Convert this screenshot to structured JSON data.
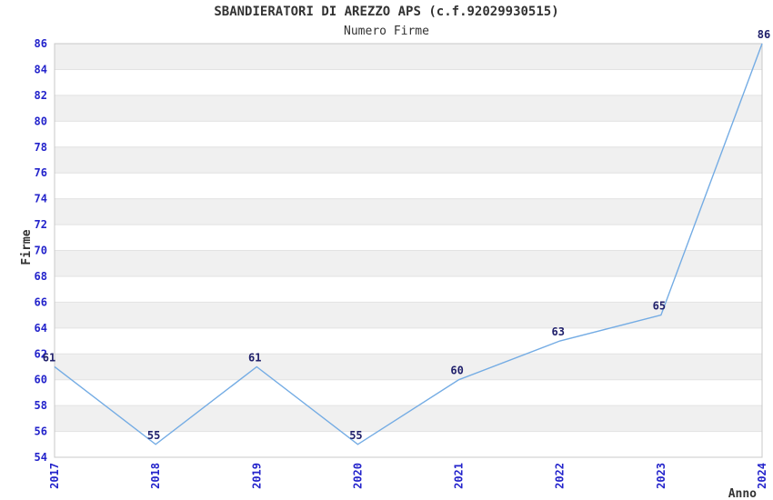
{
  "chart_data": {
    "type": "line",
    "title": "SBANDIERATORI DI AREZZO APS (c.f.92029930515)",
    "subtitle": "Numero Firme",
    "x": [
      "2017",
      "2018",
      "2019",
      "2020",
      "2021",
      "2022",
      "2023",
      "2024"
    ],
    "series": [
      {
        "name": "Numero Firme",
        "values": [
          61,
          55,
          61,
          55,
          60,
          63,
          65,
          86
        ]
      }
    ],
    "xlabel": "Anno",
    "ylabel": "Firme",
    "ylim": [
      54,
      86
    ],
    "ytick_step": 2,
    "yticks": [
      54,
      56,
      58,
      60,
      62,
      64,
      66,
      68,
      70,
      72,
      74,
      76,
      78,
      80,
      82,
      84,
      86
    ],
    "grid": true,
    "legend": false,
    "band_fill": "alternating horizontal bands every 2 units",
    "colors": {
      "line": "#74ACE4",
      "tick_label": "#2323CB",
      "data_label": "#20206B",
      "band": "#F0F0F0",
      "gridline": "#E2E2E2",
      "border": "#C8C8C8",
      "text": "#333333",
      "background": "#FFFFFF"
    }
  }
}
